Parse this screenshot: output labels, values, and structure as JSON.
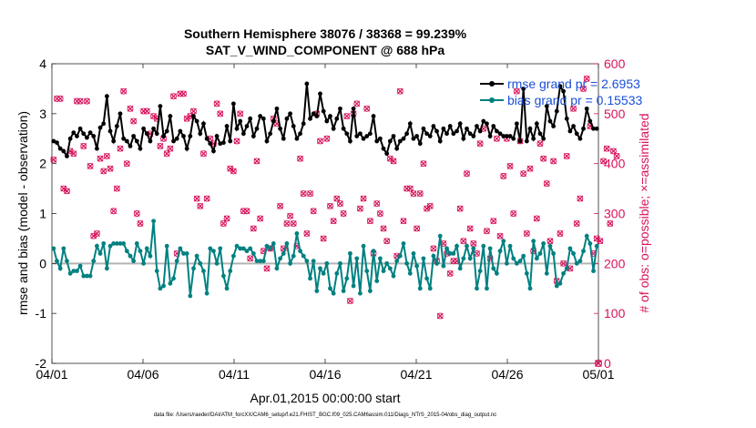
{
  "chart_data": {
    "type": "line",
    "title_line1": "Southern Hemisphere 38076 / 38368 = 99.239%",
    "title_line2": "SAT_V_WIND_COMPONENT @ 688 hPa",
    "xlabel": "Apr.01,2015 00:00:00 start",
    "ylabel_left": "rmse and bias (model - observation)",
    "ylabel_right": "# of obs: o=possible; ×=assimilated",
    "footnote": "data file: /Users/raeder/DAI/ATM_forcXX/CAM6_setup/f.e21.FHIST_BGC.f09_025.CAM6assim.011/Diags_NTrS_2015-04/obs_diag_output.nc",
    "x_ticks": [
      "04/01",
      "04/06",
      "04/11",
      "04/16",
      "04/21",
      "04/26",
      "05/01"
    ],
    "y_left_ticks": [
      "-2",
      "-1",
      "0",
      "1",
      "2",
      "3",
      "4"
    ],
    "y_right_ticks": [
      "0",
      "100",
      "200",
      "300",
      "400",
      "500",
      "600"
    ],
    "xlim_days": [
      0,
      30
    ],
    "ylim_left": [
      -2,
      4
    ],
    "ylim_right": [
      0,
      600
    ],
    "grid": false,
    "legend_position": "top-right",
    "colors": {
      "rmse": "#000000",
      "bias": "#008080",
      "obs": "#d6135c",
      "zero": "#b3b3b3",
      "legend_text": "#1a4fd6"
    },
    "series": [
      {
        "name": "rmse grand pr = 2.6953",
        "values": [
          2.45,
          2.42,
          2.3,
          2.25,
          2.15,
          2.5,
          2.62,
          2.55,
          2.7,
          2.6,
          2.52,
          2.62,
          2.55,
          2.3,
          2.72,
          2.8,
          3.35,
          2.65,
          2.45,
          2.75,
          3.0,
          2.5,
          2.45,
          2.35,
          2.55,
          2.45,
          2.3,
          2.7,
          2.6,
          2.45,
          2.7,
          2.6,
          3.15,
          2.55,
          2.65,
          2.95,
          2.45,
          2.5,
          2.65,
          2.55,
          2.3,
          2.55,
          2.95,
          2.85,
          2.6,
          2.8,
          2.5,
          2.4,
          2.25,
          2.55,
          2.4,
          2.42,
          2.75,
          2.45,
          3.2,
          2.7,
          2.85,
          2.6,
          2.75,
          2.9,
          2.55,
          2.7,
          2.95,
          2.9,
          2.45,
          2.6,
          2.85,
          3.1,
          2.7,
          2.5,
          2.9,
          3.0,
          2.75,
          2.5,
          2.6,
          2.8,
          3.6,
          2.9,
          3.0,
          2.95,
          3.4,
          3.05,
          2.85,
          2.95,
          2.7,
          2.9,
          3.1,
          2.7,
          2.6,
          2.45,
          3.1,
          2.55,
          2.6,
          2.5,
          2.55,
          2.6,
          2.95,
          2.45,
          2.5,
          2.3,
          2.2,
          2.45,
          2.55,
          2.3,
          2.45,
          2.5,
          2.6,
          2.8,
          2.5,
          2.55,
          2.4,
          2.7,
          2.6,
          2.55,
          2.75,
          2.65,
          2.45,
          2.7,
          2.6,
          2.75,
          2.6,
          2.65,
          2.8,
          2.5,
          2.7,
          2.6,
          2.55,
          2.75,
          2.65,
          2.85,
          2.8,
          2.55,
          2.75,
          2.65,
          2.6,
          2.55,
          2.55,
          2.55,
          2.5,
          2.8,
          2.45,
          3.5,
          2.45,
          2.7,
          2.5,
          2.8,
          2.6,
          2.5,
          3.15,
          2.85,
          2.75,
          3.05,
          3.55,
          3.45,
          2.9,
          2.65,
          2.75,
          2.6,
          2.5,
          2.7,
          3.1,
          2.85,
          2.7,
          2.7
        ]
      },
      {
        "name": "bias grand pr = 0.15533",
        "values": [
          0.3,
          0.05,
          -0.1,
          0.3,
          0.05,
          -0.2,
          -0.15,
          -0.15,
          -0.05,
          -0.25,
          -0.25,
          -0.25,
          0.05,
          0.35,
          0.2,
          0.4,
          -0.1,
          0.35,
          0.4,
          0.4,
          0.4,
          0.4,
          0.25,
          0.15,
          0.05,
          0.4,
          0.25,
          0.0,
          0.3,
          0.15,
          0.85,
          -0.15,
          -0.5,
          -0.45,
          0.35,
          -0.4,
          -0.3,
          0.05,
          0.3,
          0.2,
          0.2,
          -0.65,
          -0.1,
          0.15,
          0.0,
          -0.15,
          -0.6,
          0.3,
          0.25,
          0.0,
          0.3,
          -0.25,
          -0.5,
          -0.15,
          0.15,
          0.35,
          0.3,
          0.3,
          0.25,
          0.3,
          0.2,
          0.05,
          0.05,
          0.05,
          0.35,
          0.3,
          0.4,
          -0.1,
          0.1,
          0.2,
          0.4,
          0.0,
          0.15,
          0.6,
          0.25,
          0.15,
          0.05,
          -0.3,
          0.05,
          -0.55,
          -0.1,
          -0.2,
          0.0,
          -0.5,
          -0.6,
          -0.2,
          0.0,
          -0.55,
          -0.3,
          0.2,
          -0.45,
          0.1,
          -0.6,
          0.35,
          -0.15,
          -0.55,
          0.25,
          -0.35,
          0.1,
          -0.15,
          0.0,
          -0.1,
          -0.25,
          0.05,
          0.15,
          0.4,
          0.0,
          -0.2,
          0.2,
          -0.05,
          -0.5,
          0.1,
          -0.3,
          -0.5,
          0.15,
          0.0,
          0.55,
          -0.05,
          0.3,
          0.2,
          0.2,
          0.35,
          -0.1,
          0.1,
          0.35,
          0.1,
          0.3,
          -0.5,
          -0.15,
          0.35,
          -0.5,
          0.3,
          -0.1,
          -0.2,
          0.25,
          0.45,
          0.0,
          0.35,
          0.1,
          0.0,
          0.05,
          0.15,
          -0.2,
          -0.5,
          0.45,
          0.1,
          0.2,
          0.4,
          -0.2,
          0.35,
          0.2,
          -0.45,
          -0.4,
          -0.2,
          -0.1,
          0.3,
          0.2,
          0.0,
          0.05,
          0.25,
          0.55,
          0.4,
          -0.15,
          0.35
        ]
      },
      {
        "name": "# of obs",
        "values": [
          408,
          530,
          530,
          350,
          345,
          425,
          420,
          525,
          525,
          435,
          525,
          395,
          255,
          260,
          410,
          385,
          415,
          390,
          305,
          350,
          430,
          545,
          400,
          510,
          485,
          300,
          280,
          505,
          505,
          460,
          495,
          490,
          435,
          450,
          420,
          430,
          535,
          220,
          540,
          540,
          490,
          495,
          505,
          330,
          315,
          420,
          330,
          450,
          440,
          520,
          500,
          280,
          290,
          390,
          385,
          445,
          500,
          305,
          305,
          210,
          270,
          405,
          290,
          225,
          190,
          230,
          490,
          480,
          315,
          230,
          280,
          295,
          280,
          235,
          410,
          340,
          260,
          340,
          305,
          500,
          445,
          250,
          450,
          315,
          285,
          330,
          320,
          300,
          495,
          125,
          500,
          520,
          310,
          330,
          510,
          285,
          220,
          320,
          300,
          270,
          245,
          410,
          405,
          215,
          545,
          285,
          350,
          350,
          340,
          270,
          340,
          400,
          310,
          315,
          230,
          205,
          95,
          240,
          220,
          180,
          205,
          205,
          310,
          245,
          380,
          270,
          240,
          220,
          440,
          470,
          265,
          210,
          285,
          450,
          255,
          375,
          450,
          395,
          300,
          545,
          445,
          380,
          260,
          390,
          225,
          290,
          440,
          410,
          360,
          245,
          405,
          165,
          260,
          200,
          415,
          190,
          510,
          280,
          330,
          550,
          570,
          475,
          220,
          250,
          245,
          405,
          430,
          280,
          425,
          415
        ]
      }
    ]
  }
}
